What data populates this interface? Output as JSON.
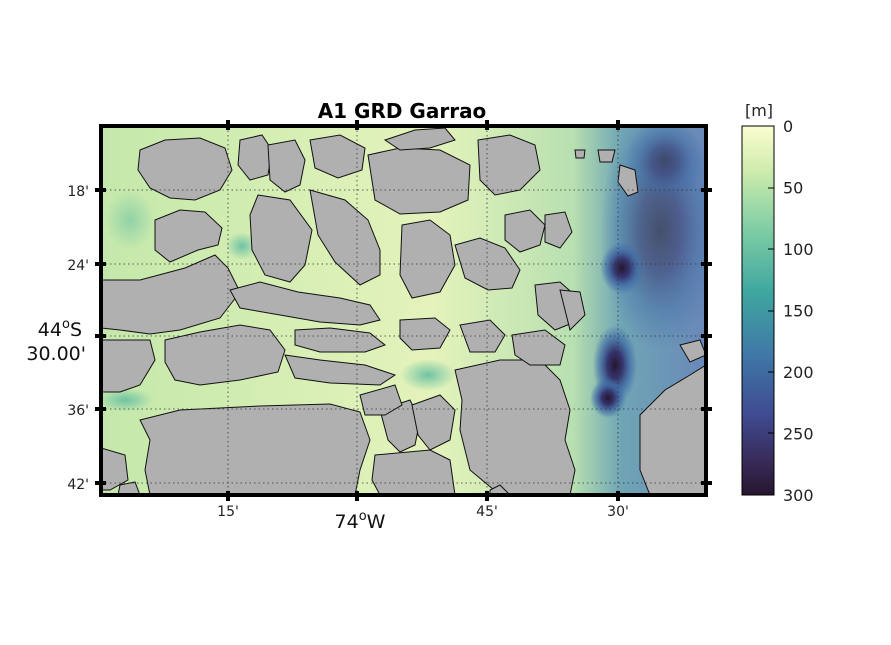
{
  "title": "A1 GRD Garrao",
  "x_axis": {
    "minor_ticks": [
      "15'",
      "45'",
      "30'"
    ],
    "major_deg": "74",
    "major_sup": "o",
    "major_hemi": "W"
  },
  "y_axis": {
    "minor_ticks": [
      "18'",
      "24'",
      "36'",
      "42'"
    ],
    "major_line1_deg": "44",
    "major_line1_sup": "o",
    "major_line1_hemi": "S",
    "major_line2": "30.00'"
  },
  "colorbar": {
    "unit_label": "[m]",
    "ticks": [
      "0",
      "50",
      "100",
      "150",
      "200",
      "250",
      "300"
    ],
    "range": [
      0,
      300
    ]
  },
  "colors": {
    "land": "#b0b0b0",
    "shallow": "#f6f9c6",
    "mid": "#8ad0a5",
    "deep": "#3f5fa0",
    "deepest": "#26162f"
  }
}
